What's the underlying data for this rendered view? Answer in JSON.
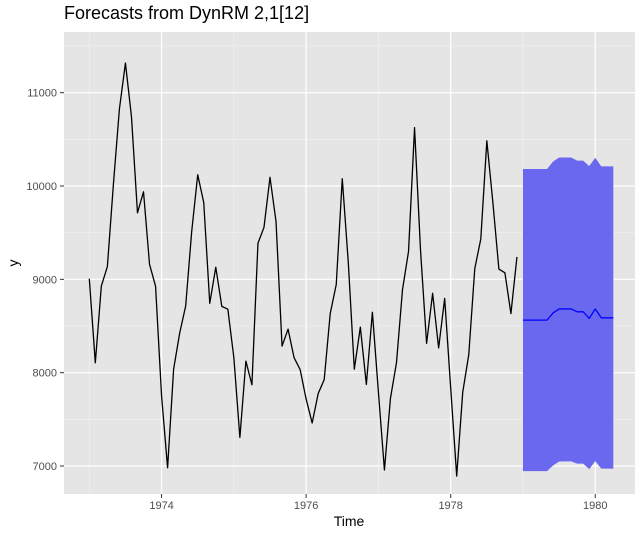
{
  "chart_data": {
    "type": "line",
    "title": "Forecasts from DynRM 2,1[12]",
    "xlabel": "Time",
    "ylabel": "y",
    "xlim": [
      1972.65,
      1980.55
    ],
    "ylim": [
      6700,
      11650
    ],
    "x_ticks": [
      1974,
      1976,
      1978,
      1980
    ],
    "x_minor_ticks": [
      1973,
      1975,
      1977,
      1979
    ],
    "y_ticks": [
      7000,
      8000,
      9000,
      10000,
      11000
    ],
    "y_minor_ticks": [
      7500,
      8500,
      9500,
      10500,
      11500
    ],
    "grid": true,
    "series": [
      {
        "name": "observed",
        "color": "#000000",
        "start": 1973,
        "frequency": 12,
        "values": [
          9007,
          8106,
          8928,
          9137,
          10017,
          10826,
          11317,
          10744,
          9713,
          9938,
          9161,
          8927,
          7750,
          6981,
          8038,
          8422,
          8714,
          9512,
          10120,
          9823,
          8743,
          9129,
          8710,
          8680,
          8162,
          7306,
          8124,
          7870,
          9387,
          9556,
          10093,
          9620,
          8285,
          8466,
          8160,
          8034,
          7717,
          7461,
          7776,
          7925,
          8634,
          8945,
          10078,
          9179,
          8037,
          8488,
          7874,
          8647,
          7792,
          6957,
          7726,
          8106,
          8890,
          9299,
          10625,
          9302,
          8314,
          8850,
          8265,
          8796,
          7836,
          6892,
          7791,
          8192,
          9115,
          9434,
          10484,
          9827,
          9110,
          9070,
          8633,
          9240
        ]
      },
      {
        "name": "forecast",
        "color": "#0000ff",
        "start": 1979,
        "frequency": 12,
        "values": [
          8563,
          8563,
          8563,
          8563,
          8563,
          8640,
          8683,
          8683,
          8683,
          8652,
          8652,
          8582,
          8682,
          8588,
          8588,
          8588
        ]
      }
    ],
    "interval": {
      "name": "prediction interval",
      "color": "#6b68f0",
      "start": 1979,
      "frequency": 12,
      "lower": [
        6945,
        6945,
        6945,
        6945,
        6945,
        7006,
        7048,
        7050,
        7050,
        7025,
        7025,
        6967,
        7052,
        6972,
        6972,
        6972
      ],
      "upper": [
        10182,
        10182,
        10182,
        10182,
        10182,
        10262,
        10306,
        10306,
        10306,
        10272,
        10272,
        10213,
        10302,
        10210,
        10210,
        10210
      ]
    }
  }
}
